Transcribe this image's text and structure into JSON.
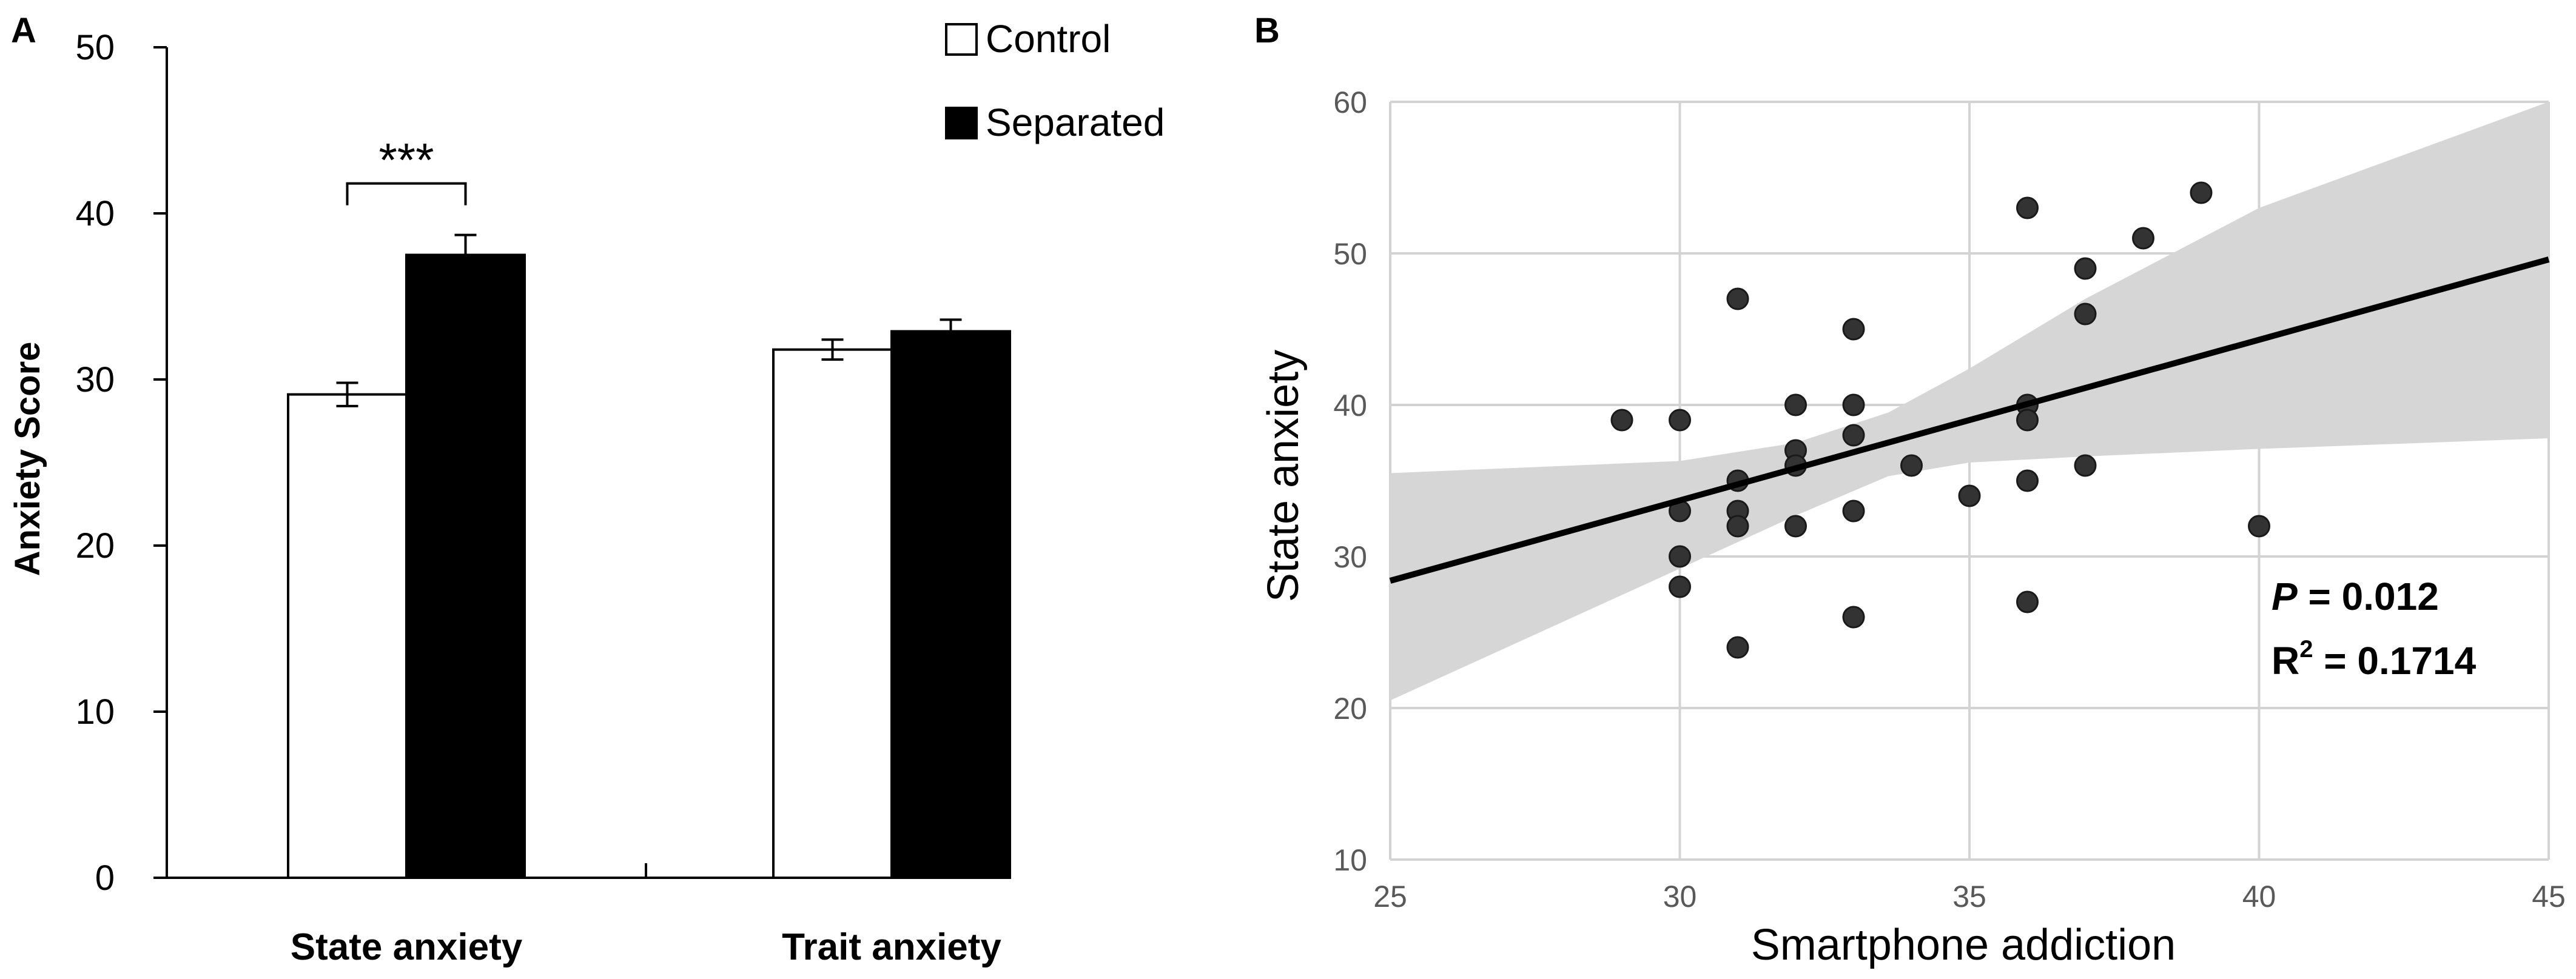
{
  "panels": {
    "a": {
      "letter": "A"
    },
    "b": {
      "letter": "B"
    }
  },
  "colors": {
    "control_fill": "#ffffff",
    "separated_fill": "#000000",
    "scatter_point": "#333333",
    "confidence_band": "#d6d6d6",
    "grid": "#d3d3d3"
  },
  "chart_data": [
    {
      "type": "bar",
      "panel": "A",
      "title": "",
      "xlabel": "",
      "ylabel": "Anxiety Score",
      "ylim": [
        0,
        50
      ],
      "yticks": [
        0,
        10,
        20,
        30,
        40,
        50
      ],
      "categories": [
        "State anxiety",
        "Trait anxiety"
      ],
      "series": [
        {
          "name": "Control",
          "values": [
            29.1,
            31.8
          ],
          "errors": [
            0.7,
            0.6
          ],
          "fill": "#ffffff"
        },
        {
          "name": "Separated",
          "values": [
            37.5,
            32.9
          ],
          "errors": [
            1.2,
            0.7
          ],
          "fill": "#000000"
        }
      ],
      "legend_position": "top-right",
      "annotations": [
        {
          "text": "***",
          "category": "State anxiety",
          "bracket_y": 41.8
        }
      ]
    },
    {
      "type": "scatter",
      "panel": "B",
      "title": "",
      "xlabel": "Smartphone addiction",
      "ylabel": "State anxiety",
      "xlim": [
        25,
        45
      ],
      "ylim": [
        10,
        60
      ],
      "xticks": [
        25,
        30,
        35,
        40,
        45
      ],
      "yticks": [
        10,
        20,
        30,
        40,
        50,
        60
      ],
      "grid": true,
      "points": [
        [
          29,
          39
        ],
        [
          30,
          39
        ],
        [
          30,
          33
        ],
        [
          30,
          30
        ],
        [
          30,
          28
        ],
        [
          31,
          47
        ],
        [
          31,
          35
        ],
        [
          31,
          33
        ],
        [
          31,
          32
        ],
        [
          31,
          24
        ],
        [
          32,
          40
        ],
        [
          32,
          37
        ],
        [
          32,
          36
        ],
        [
          32,
          32
        ],
        [
          33,
          45
        ],
        [
          33,
          40
        ],
        [
          33,
          38
        ],
        [
          33,
          33
        ],
        [
          33,
          26
        ],
        [
          34,
          36
        ],
        [
          35,
          34
        ],
        [
          36,
          53
        ],
        [
          36,
          40
        ],
        [
          36,
          39
        ],
        [
          36,
          35
        ],
        [
          36,
          27
        ],
        [
          37,
          49
        ],
        [
          37,
          46
        ],
        [
          37,
          36
        ],
        [
          38,
          51
        ],
        [
          39,
          54
        ],
        [
          40,
          32
        ]
      ],
      "regression": {
        "slope": 1.06,
        "intercept": 1.9
      },
      "confidence_band": {
        "x": [
          25,
          30,
          32,
          33.6,
          35,
          37,
          40,
          45
        ],
        "lower": [
          20.5,
          29.2,
          32.7,
          35.3,
          36.2,
          36.6,
          37.1,
          37.8
        ],
        "upper": [
          35.5,
          36.3,
          37.5,
          39.5,
          42.4,
          47.0,
          53.0,
          60.0
        ]
      },
      "annotations": [
        {
          "id": "p_value",
          "label": "P",
          "text": " = 0.012"
        },
        {
          "id": "r_squared",
          "label": "R",
          "sup": "2",
          "text": " = 0.1714"
        }
      ]
    }
  ]
}
